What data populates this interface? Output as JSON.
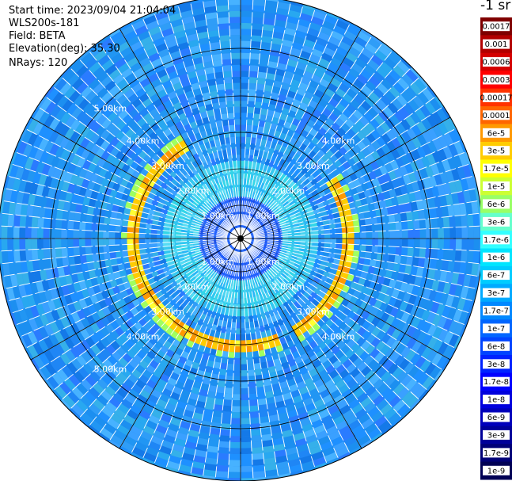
{
  "header": {
    "start_time": "Start time: 2023/09/04 21:04:04",
    "instrument": "WLS200s-181",
    "field": "Field: BETA",
    "elevation": "Elevation(deg): 35.30",
    "nrays": "NRays: 120"
  },
  "colorbar": {
    "unit": "-1 sr",
    "labels": [
      "0.0017",
      "0.001",
      "0.0006",
      "0.0003",
      "0.00017",
      "0.0001",
      "6e-5",
      "3e-5",
      "1.7e-5",
      "1e-5",
      "6e-6",
      "3e-6",
      "1.7e-6",
      "1e-6",
      "6e-7",
      "3e-7",
      "1.7e-7",
      "1e-7",
      "6e-8",
      "3e-8",
      "1.7e-8",
      "1e-8",
      "6e-9",
      "3e-9",
      "1.7e-9",
      "1e-9"
    ],
    "colors": [
      "#7f0000",
      "#b20000",
      "#d40000",
      "#ff0000",
      "#ff3300",
      "#ff6600",
      "#ff9900",
      "#ffcc00",
      "#ffff00",
      "#ccff33",
      "#99ff66",
      "#66ffcc",
      "#33ffff",
      "#00e5ff",
      "#00ccff",
      "#00aaff",
      "#0088ff",
      "#0066ff",
      "#0044ff",
      "#0022ff",
      "#0000ff",
      "#0000dd",
      "#0000bb",
      "#000099",
      "#000077",
      "#000055"
    ]
  },
  "chart_data": {
    "type": "ppi",
    "range_rings_km": [
      1,
      2,
      3,
      4,
      5
    ],
    "ring_labels": [
      "1.00km",
      "2.00km",
      "3.00km",
      "4.00km",
      "5.00km"
    ],
    "nrays": 120,
    "feature_ring_km": 3.25
  }
}
